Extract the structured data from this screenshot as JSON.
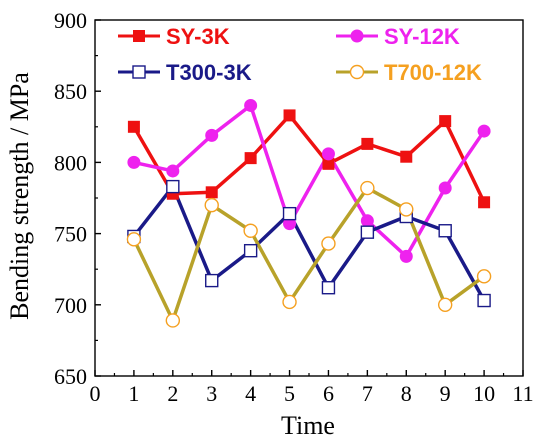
{
  "chart_data": {
    "type": "line",
    "title": "",
    "xlabel": "Time",
    "ylabel": "Bending strength / MPa",
    "xlim": [
      0,
      11
    ],
    "ylim": [
      650,
      900
    ],
    "x_ticks": [
      0,
      1,
      2,
      3,
      4,
      5,
      6,
      7,
      8,
      9,
      10,
      11
    ],
    "y_ticks": [
      650,
      700,
      750,
      800,
      850,
      900
    ],
    "grid": false,
    "legend_position": "top",
    "x": [
      1,
      2,
      3,
      4,
      5,
      6,
      7,
      8,
      9,
      10
    ],
    "series": [
      {
        "name": "SY-3K",
        "color": "#ee1111",
        "line_color": "#ee1111",
        "marker": "square-filled",
        "values": [
          825,
          778,
          779,
          803,
          833,
          799,
          813,
          804,
          829,
          772
        ]
      },
      {
        "name": "SY-12K",
        "color": "#ee22ee",
        "line_color": "#ee22ee",
        "marker": "circle-filled",
        "values": [
          800,
          794,
          819,
          840,
          757,
          806,
          759,
          734,
          782,
          822
        ]
      },
      {
        "name": "T300-3K",
        "color": "#1a1a88",
        "line_color": "#1a1a88",
        "marker": "square-open",
        "values": [
          748,
          783,
          717,
          738,
          764,
          712,
          751,
          762,
          752,
          703
        ]
      },
      {
        "name": "T700-12K",
        "color": "#f5a020",
        "line_color": "#b8a22a",
        "marker": "circle-open",
        "values": [
          746,
          689,
          770,
          752,
          702,
          743,
          782,
          767,
          700,
          720
        ]
      }
    ]
  }
}
